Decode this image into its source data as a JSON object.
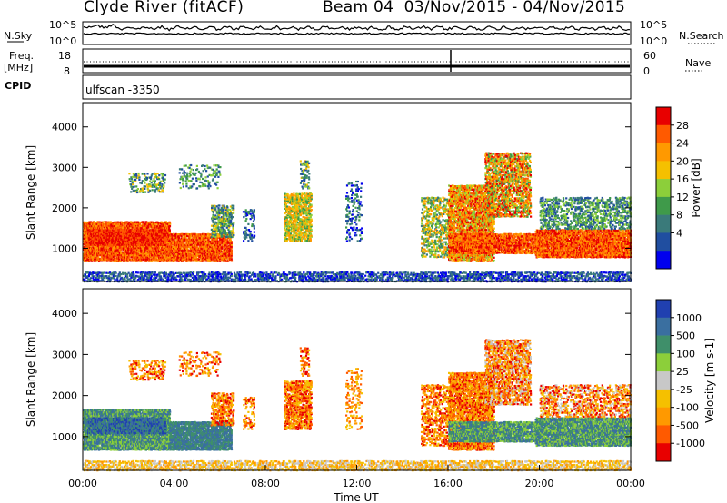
{
  "header": {
    "title": "Clyde River (fitACF)",
    "beam_date": "Beam 04  03/Nov/2015 - 04/Nov/2015"
  },
  "strips": {
    "nsky_label": "N.Sky",
    "nsky_ticks": [
      "10^5",
      "10^0"
    ],
    "nsearch_label": "N.Search",
    "freq_label": "Freq.",
    "freq_unit": "[MHz]",
    "freq_ticks": [
      "18",
      "8"
    ],
    "nave_label": "Nave",
    "nave_ticks": [
      "60",
      "0"
    ],
    "cpid_label": "CPID",
    "cpid_value": "ulfscan -3350"
  },
  "chart_data": [
    {
      "type": "heatmap",
      "panel": "power",
      "ylabel": "Slant Range [km]",
      "yticks": [
        "4000",
        "3000",
        "2000",
        "1000"
      ],
      "ylim": [
        180,
        4600
      ],
      "xlim": [
        0,
        24
      ],
      "colorbar_label": "Power [dB]",
      "colorbar_ticks": [
        "28",
        "24",
        "20",
        "16",
        "12",
        "8",
        "4"
      ],
      "colorbar_colors": [
        "#e80000",
        "#ff5a00",
        "#ff9900",
        "#f5c000",
        "#8ccf3a",
        "#3f9a4a",
        "#3a7a7a",
        "#204ea0",
        "#0000ee"
      ]
    },
    {
      "type": "heatmap",
      "panel": "velocity",
      "ylabel": "Slant Range [km]",
      "yticks": [
        "4000",
        "3000",
        "2000",
        "1000"
      ],
      "ylim": [
        180,
        4600
      ],
      "xlim": [
        0,
        24
      ],
      "xlabel": "Time UT",
      "xticks": [
        "00:00",
        "04:00",
        "08:00",
        "12:00",
        "16:00",
        "20:00",
        "00:00"
      ],
      "colorbar_label": "Velocity [m s-1]",
      "colorbar_ticks": [
        "1000",
        "500",
        "100",
        "25",
        "-25",
        "-100",
        "-500",
        "-1000"
      ],
      "colorbar_colors": [
        "#2040b0",
        "#3a6fa0",
        "#3f8f6a",
        "#8ccf3a",
        "#c8c8c8",
        "#f5c000",
        "#ff9900",
        "#ff5a00",
        "#e80000"
      ]
    }
  ]
}
